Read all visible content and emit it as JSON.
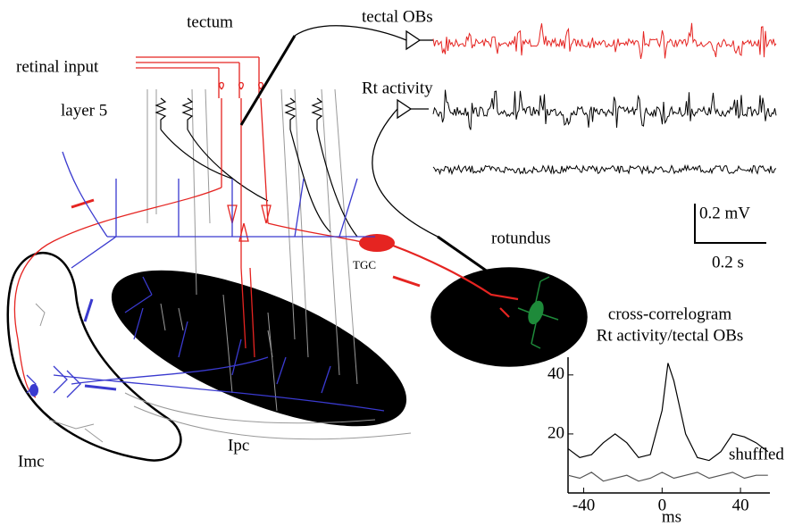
{
  "labels": {
    "tectum": "tectum",
    "retinal_input": "retinal input",
    "layer5": "layer 5",
    "tectal_obs": "tectal OBs",
    "rt_activity": "Rt activity",
    "rotundus": "rotundus",
    "tgc": "TGC",
    "imc": "Imc",
    "ipc": "Ipc"
  },
  "scale_bars": {
    "voltage": "0.2 mV",
    "time": "0.2 s"
  },
  "chart_data": {
    "type": "line",
    "title": "cross-correlogram",
    "subtitle": "Rt activity/tectal OBs",
    "x_label": "ms",
    "x": [
      -48,
      -42,
      -36,
      -30,
      -24,
      -18,
      -12,
      -6,
      0,
      3,
      6,
      12,
      18,
      24,
      30,
      36,
      42,
      48,
      54
    ],
    "series": [
      {
        "color": "#000000",
        "values": [
          15,
          12,
          13,
          17,
          20,
          17,
          12,
          13,
          28,
          44,
          38,
          20,
          12,
          11,
          14,
          20,
          19,
          17,
          14
        ]
      },
      {
        "name": "shuffled",
        "color": "#555555",
        "values": [
          6,
          5,
          7,
          4,
          5,
          6,
          4,
          5,
          7,
          6,
          5,
          6,
          7,
          5,
          6,
          7,
          5,
          6,
          6
        ]
      }
    ],
    "xlim": [
      -48,
      55
    ],
    "ylim": [
      0,
      46
    ],
    "xticks": [
      -40,
      0,
      40
    ],
    "yticks": [
      20,
      40
    ]
  }
}
